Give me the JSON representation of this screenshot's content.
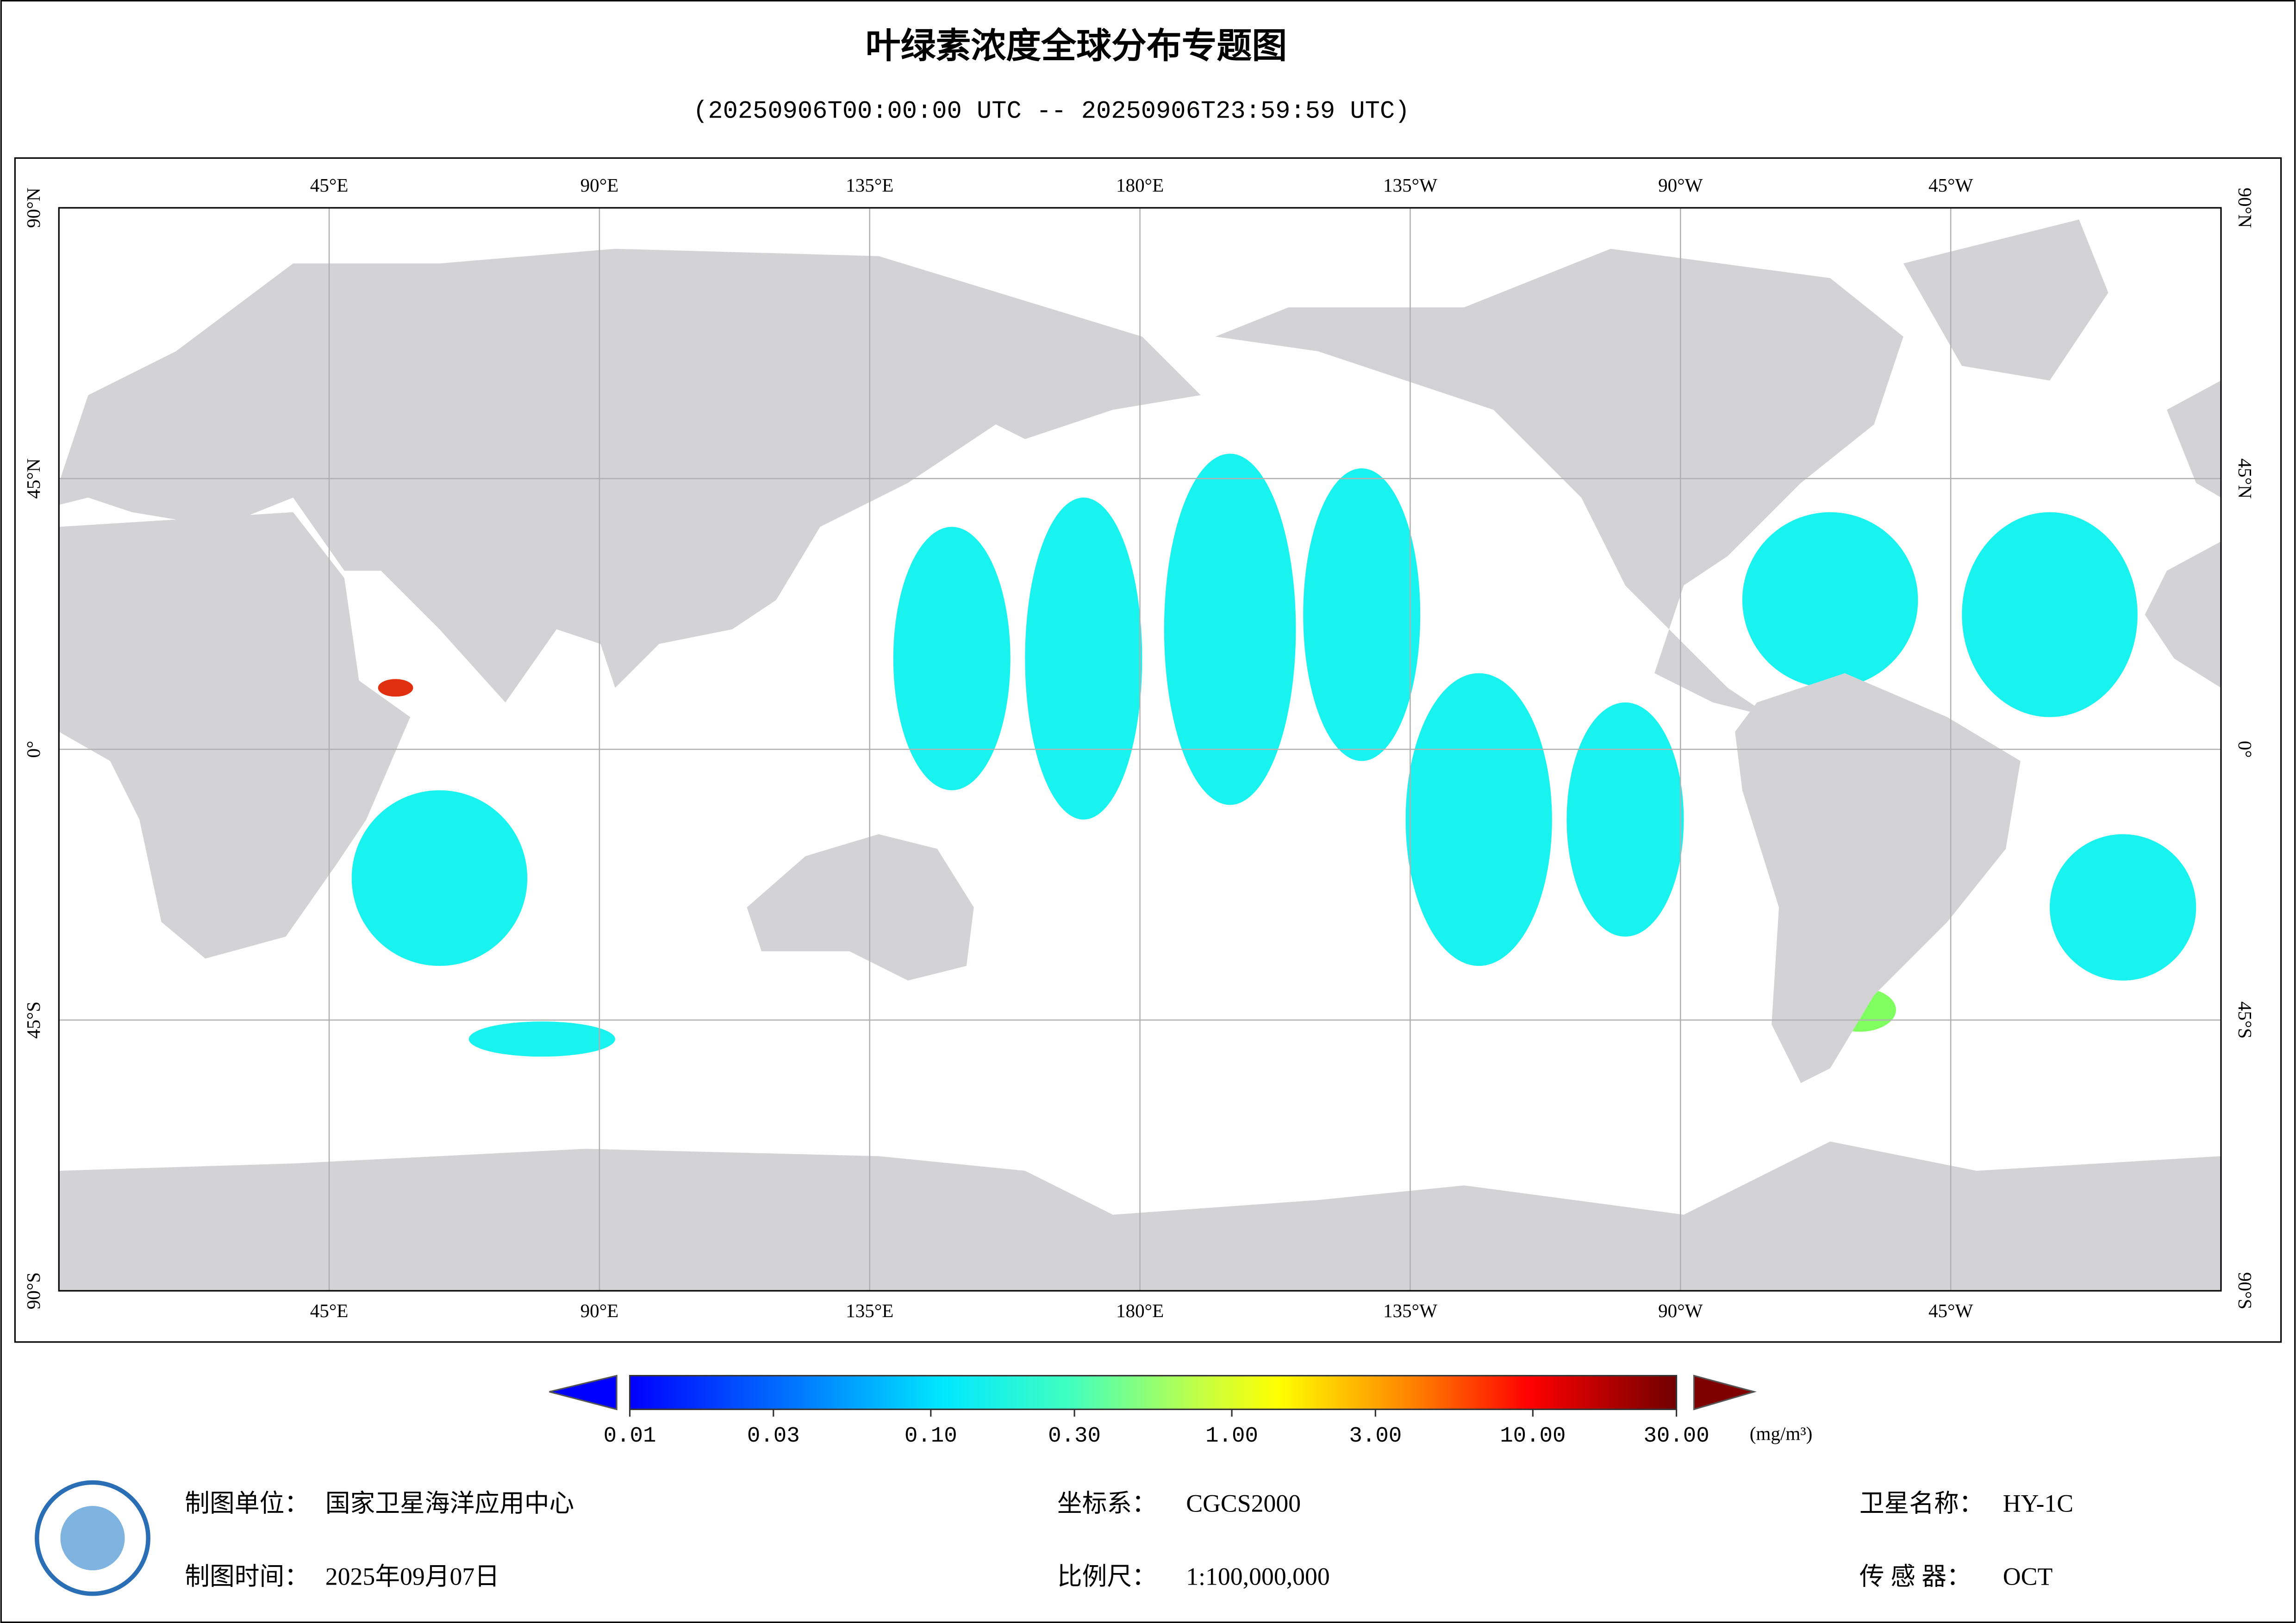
{
  "title": "叶绿素浓度全球分布专题图",
  "subtitle": "(20250906T00:00:00 UTC -- 20250906T23:59:59 UTC)",
  "map": {
    "lon_labels": [
      "45°E",
      "90°E",
      "135°E",
      "180°E",
      "135°W",
      "90°W",
      "45°W"
    ],
    "lat_labels": [
      "90°N",
      "45°N",
      "0°",
      "45°S",
      "90°S"
    ]
  },
  "colorbar": {
    "range": [
      0.01,
      30
    ],
    "log": true,
    "ticks": [
      {
        "value": 0.01,
        "label": "0.01"
      },
      {
        "value": 0.03,
        "label": "0.03"
      },
      {
        "value": 0.1,
        "label": "0.10"
      },
      {
        "value": 0.3,
        "label": "0.30"
      },
      {
        "value": 1,
        "label": "1.00"
      },
      {
        "value": 3,
        "label": "3.00"
      },
      {
        "value": 10,
        "label": "10.00"
      },
      {
        "value": 30,
        "label": "30.00"
      }
    ],
    "unit": "(mg/m³)"
  },
  "footer": {
    "unit_label": "制图单位：",
    "unit_value": "国家卫星海洋应用中心",
    "time_label": "制图时间：",
    "time_value": "2025年09月07日",
    "crs_label": "坐标系：",
    "crs_value": "CGCS2000",
    "scale_label": "比例尺：",
    "scale_value": "1:100,000,000",
    "sat_label": "卫星名称：",
    "sat_value": "HY-1C",
    "sensor_label": "传 感 器：",
    "sensor_value": "OCT"
  }
}
